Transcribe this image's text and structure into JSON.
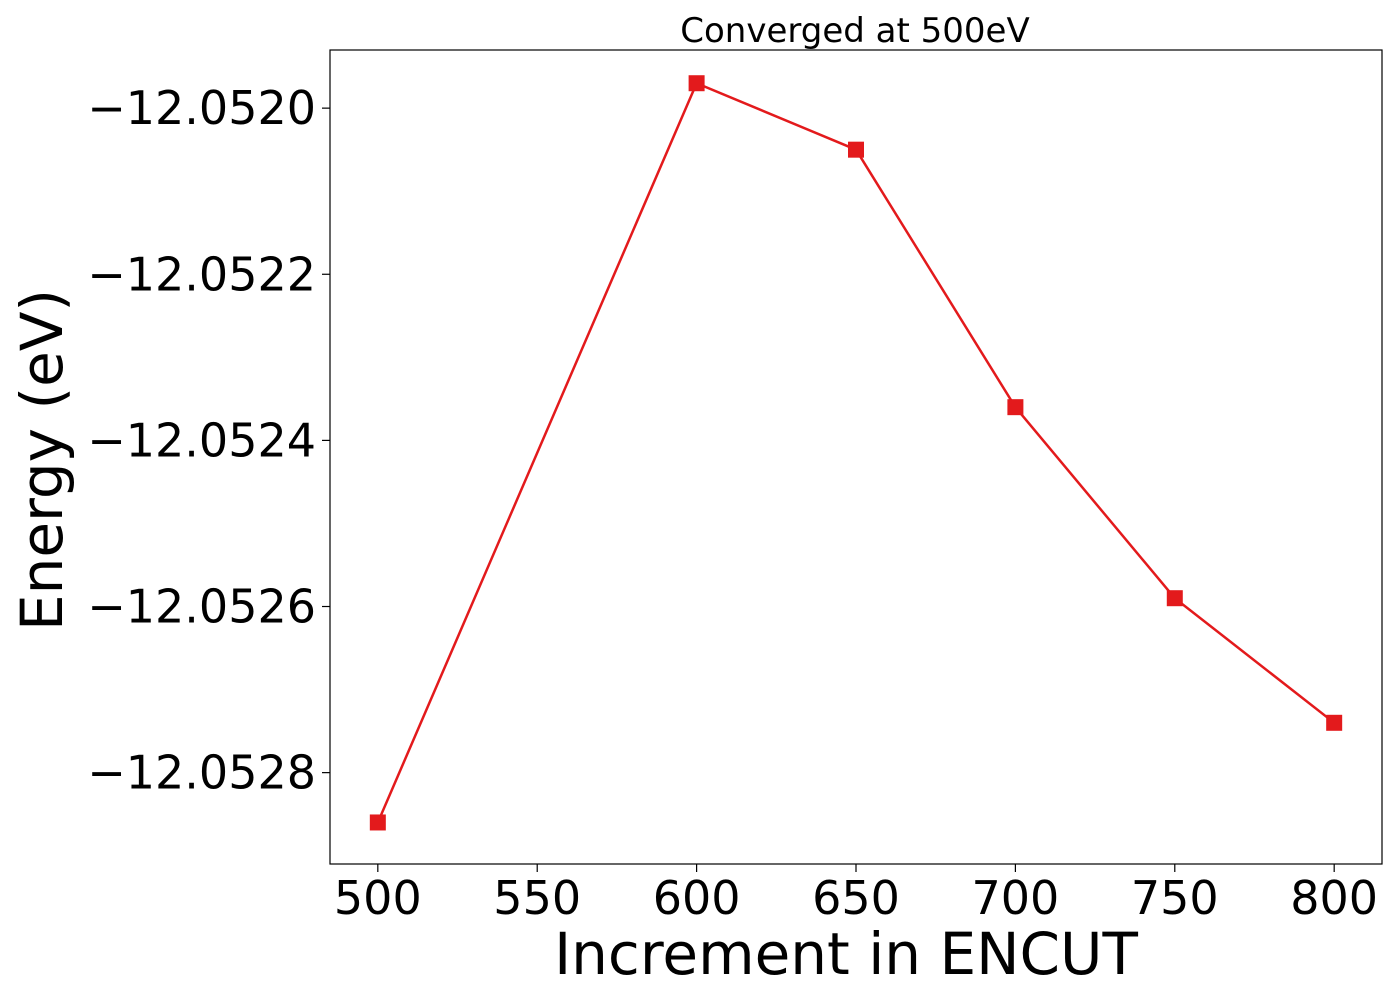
{
  "chart_data": {
    "type": "line",
    "title": "Converged at 500eV",
    "xlabel": "Increment in ENCUT",
    "ylabel": "Energy (eV)",
    "xlim": [
      485,
      815
    ],
    "ylim": [
      -12.05291,
      -12.05193
    ],
    "xticks": [
      500,
      550,
      600,
      650,
      700,
      750,
      800
    ],
    "xtick_labels": [
      "500",
      "550",
      "600",
      "650",
      "700",
      "750",
      "800"
    ],
    "yticks": [
      -12.052,
      -12.0522,
      -12.0524,
      -12.0526,
      -12.0528
    ],
    "ytick_labels": [
      "−12.0520",
      "−12.0522",
      "−12.0524",
      "−12.0526",
      "−12.0528"
    ],
    "grid": false,
    "series": [
      {
        "color": "#e31a1c",
        "marker": "square",
        "x": [
          500,
          600,
          650,
          700,
          750,
          800
        ],
        "y": [
          -12.05286,
          -12.05197,
          -12.05205,
          -12.05236,
          -12.05259,
          -12.05274
        ]
      }
    ]
  }
}
